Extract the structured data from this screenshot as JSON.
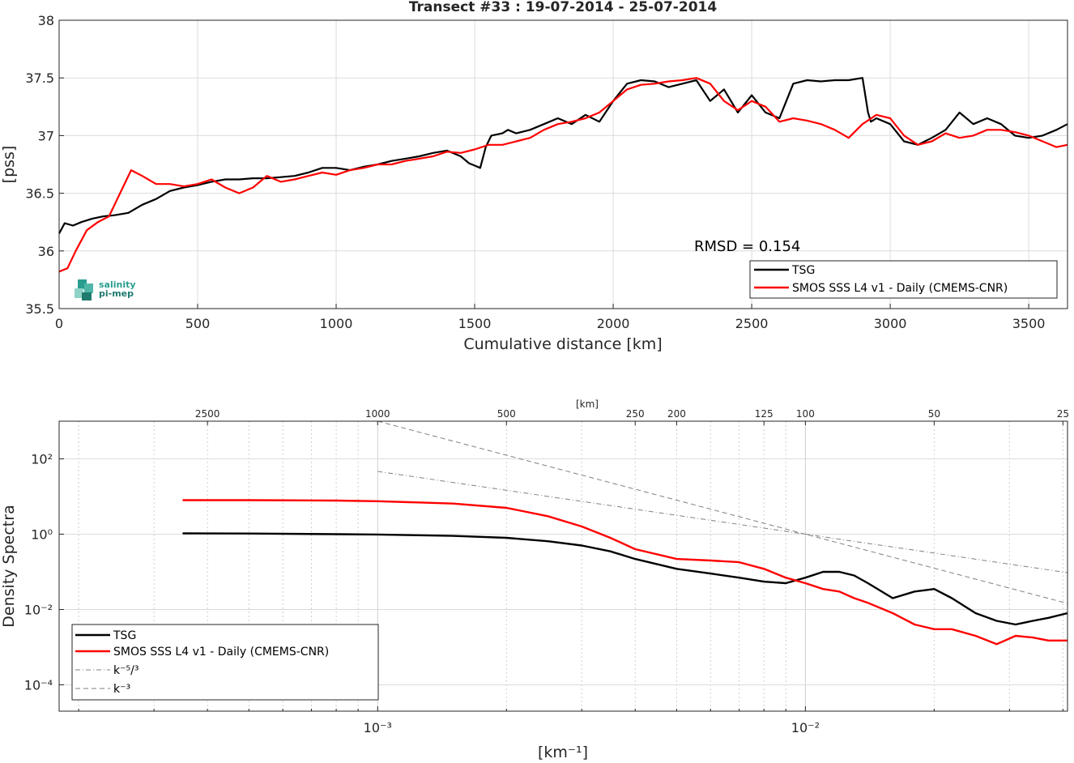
{
  "title": "Transect #33 : 19-07-2014 - 25-07-2014",
  "logo": {
    "line1": "salinity",
    "line2": "pi-mep",
    "colors": [
      "#2a9d8f",
      "#4fb6a8",
      "#8fd3c7",
      "#1f7a70"
    ]
  },
  "chart_data": [
    {
      "type": "line",
      "title": "Transect #33 : 19-07-2014 - 25-07-2014",
      "xlabel": "Cumulative distance [km]",
      "ylabel": "[pss]",
      "xlim": [
        0,
        3640
      ],
      "ylim": [
        35.5,
        38
      ],
      "xticks": [
        0,
        500,
        1000,
        1500,
        2000,
        2500,
        3000,
        3500
      ],
      "yticks": [
        35.5,
        36,
        36.5,
        37,
        37.5,
        38
      ],
      "grid": true,
      "legend_position": "bottom-right",
      "annotation": "RMSD = 0.154",
      "series": [
        {
          "name": "TSG",
          "color": "#000000",
          "x": [
            0,
            20,
            50,
            80,
            120,
            160,
            200,
            250,
            300,
            350,
            400,
            450,
            500,
            550,
            600,
            650,
            700,
            750,
            800,
            850,
            900,
            950,
            1000,
            1050,
            1100,
            1150,
            1200,
            1250,
            1300,
            1350,
            1400,
            1450,
            1480,
            1500,
            1520,
            1540,
            1560,
            1600,
            1620,
            1650,
            1700,
            1750,
            1800,
            1850,
            1900,
            1950,
            2000,
            2050,
            2100,
            2150,
            2200,
            2250,
            2300,
            2350,
            2400,
            2450,
            2500,
            2550,
            2600,
            2650,
            2700,
            2750,
            2800,
            2850,
            2900,
            2920,
            2930,
            2950,
            3000,
            3050,
            3100,
            3150,
            3200,
            3250,
            3300,
            3350,
            3400,
            3450,
            3500,
            3550,
            3600,
            3640
          ],
          "values": [
            36.15,
            36.24,
            36.22,
            36.25,
            36.28,
            36.3,
            36.31,
            36.33,
            36.4,
            36.45,
            36.52,
            36.55,
            36.57,
            36.6,
            36.62,
            36.62,
            36.63,
            36.63,
            36.64,
            36.65,
            36.68,
            36.72,
            36.72,
            36.7,
            36.73,
            36.75,
            36.78,
            36.8,
            36.82,
            36.85,
            36.87,
            36.82,
            36.76,
            36.74,
            36.72,
            36.9,
            37.0,
            37.02,
            37.05,
            37.02,
            37.05,
            37.1,
            37.15,
            37.1,
            37.18,
            37.12,
            37.3,
            37.45,
            37.48,
            37.47,
            37.42,
            37.45,
            37.48,
            37.3,
            37.4,
            37.2,
            37.35,
            37.2,
            37.15,
            37.45,
            37.48,
            37.47,
            37.48,
            37.48,
            37.5,
            37.2,
            37.12,
            37.15,
            37.1,
            36.95,
            36.92,
            36.98,
            37.05,
            37.2,
            37.1,
            37.15,
            37.1,
            37.0,
            36.98,
            37.0,
            37.05,
            37.1
          ]
        },
        {
          "name": "SMOS SSS L4 v1 - Daily (CMEMS-CNR)",
          "color": "#ff0000",
          "x": [
            0,
            30,
            60,
            100,
            140,
            180,
            220,
            260,
            300,
            350,
            400,
            450,
            500,
            550,
            600,
            650,
            700,
            750,
            800,
            850,
            900,
            950,
            1000,
            1050,
            1100,
            1150,
            1200,
            1250,
            1300,
            1350,
            1400,
            1450,
            1500,
            1550,
            1600,
            1650,
            1700,
            1750,
            1800,
            1850,
            1900,
            1950,
            2000,
            2050,
            2100,
            2150,
            2200,
            2250,
            2300,
            2350,
            2400,
            2450,
            2500,
            2550,
            2600,
            2650,
            2700,
            2750,
            2800,
            2850,
            2900,
            2950,
            3000,
            3050,
            3100,
            3150,
            3200,
            3250,
            3300,
            3350,
            3400,
            3450,
            3500,
            3550,
            3600,
            3640
          ],
          "values": [
            35.82,
            35.85,
            36.0,
            36.18,
            36.25,
            36.3,
            36.5,
            36.7,
            36.65,
            36.58,
            36.58,
            36.56,
            36.58,
            36.62,
            36.55,
            36.5,
            36.55,
            36.65,
            36.6,
            36.62,
            36.65,
            36.68,
            36.66,
            36.7,
            36.72,
            36.75,
            36.75,
            36.78,
            36.8,
            36.82,
            36.86,
            36.85,
            36.88,
            36.92,
            36.92,
            36.95,
            36.98,
            37.05,
            37.1,
            37.12,
            37.15,
            37.2,
            37.3,
            37.4,
            37.44,
            37.45,
            37.47,
            37.48,
            37.5,
            37.45,
            37.3,
            37.22,
            37.3,
            37.25,
            37.12,
            37.15,
            37.13,
            37.1,
            37.05,
            36.98,
            37.1,
            37.18,
            37.15,
            37.0,
            36.92,
            36.95,
            37.02,
            36.98,
            37.0,
            37.05,
            37.05,
            37.03,
            37.0,
            36.95,
            36.9,
            36.92
          ]
        }
      ]
    },
    {
      "type": "line",
      "xlabel": "[km⁻¹]",
      "ylabel": "Density Spectra",
      "x_scale": "log",
      "y_scale": "log",
      "xlim": [
        0.00018,
        0.041
      ],
      "ylim": [
        2e-05,
        1000
      ],
      "xtick_labels": [
        "10⁻³",
        "10⁻²"
      ],
      "ytick_labels": [
        "10²",
        "10⁰",
        "10⁻²",
        "10⁻⁴"
      ],
      "top_axis_label": "[km]",
      "top_ticks": [
        "2500",
        "1000",
        "500",
        "250",
        "200",
        "125",
        "100",
        "50",
        "25"
      ],
      "grid": true,
      "legend_position": "bottom-left",
      "series": [
        {
          "name": "TSG",
          "color": "#000000",
          "x": [
            0.00035,
            0.0005,
            0.0008,
            0.001,
            0.0015,
            0.002,
            0.0025,
            0.003,
            0.0035,
            0.004,
            0.005,
            0.006,
            0.007,
            0.008,
            0.009,
            0.01,
            0.011,
            0.012,
            0.013,
            0.014,
            0.016,
            0.018,
            0.02,
            0.022,
            0.025,
            0.028,
            0.031,
            0.034,
            0.037,
            0.041
          ],
          "values": [
            1.05,
            1.04,
            1.0,
            0.98,
            0.9,
            0.8,
            0.65,
            0.5,
            0.35,
            0.22,
            0.12,
            0.09,
            0.07,
            0.055,
            0.05,
            0.07,
            0.1,
            0.1,
            0.08,
            0.05,
            0.02,
            0.03,
            0.035,
            0.02,
            0.008,
            0.005,
            0.004,
            0.005,
            0.006,
            0.008
          ]
        },
        {
          "name": "SMOS SSS L4 v1 - Daily (CMEMS-CNR)",
          "color": "#ff0000",
          "x": [
            0.00035,
            0.0005,
            0.0008,
            0.001,
            0.0015,
            0.002,
            0.0025,
            0.003,
            0.0035,
            0.004,
            0.005,
            0.006,
            0.007,
            0.008,
            0.009,
            0.01,
            0.011,
            0.012,
            0.013,
            0.014,
            0.016,
            0.018,
            0.02,
            0.022,
            0.025,
            0.028,
            0.031,
            0.034,
            0.037,
            0.041
          ],
          "values": [
            8.0,
            8.0,
            7.8,
            7.5,
            6.5,
            5.0,
            3.0,
            1.6,
            0.8,
            0.4,
            0.22,
            0.2,
            0.18,
            0.12,
            0.07,
            0.05,
            0.035,
            0.03,
            0.02,
            0.015,
            0.008,
            0.004,
            0.003,
            0.003,
            0.002,
            0.0012,
            0.002,
            0.0018,
            0.0015,
            0.0015
          ]
        },
        {
          "name": "k⁻⁵/³",
          "color": "#808080",
          "style": "dash-dot",
          "x": [
            0.001,
            0.041
          ],
          "values": [
            46.4,
            0.095
          ]
        },
        {
          "name": "k⁻³",
          "color": "#808080",
          "style": "dashed",
          "x": [
            0.001,
            0.041
          ],
          "values": [
            1000,
            0.0145
          ]
        }
      ]
    }
  ]
}
